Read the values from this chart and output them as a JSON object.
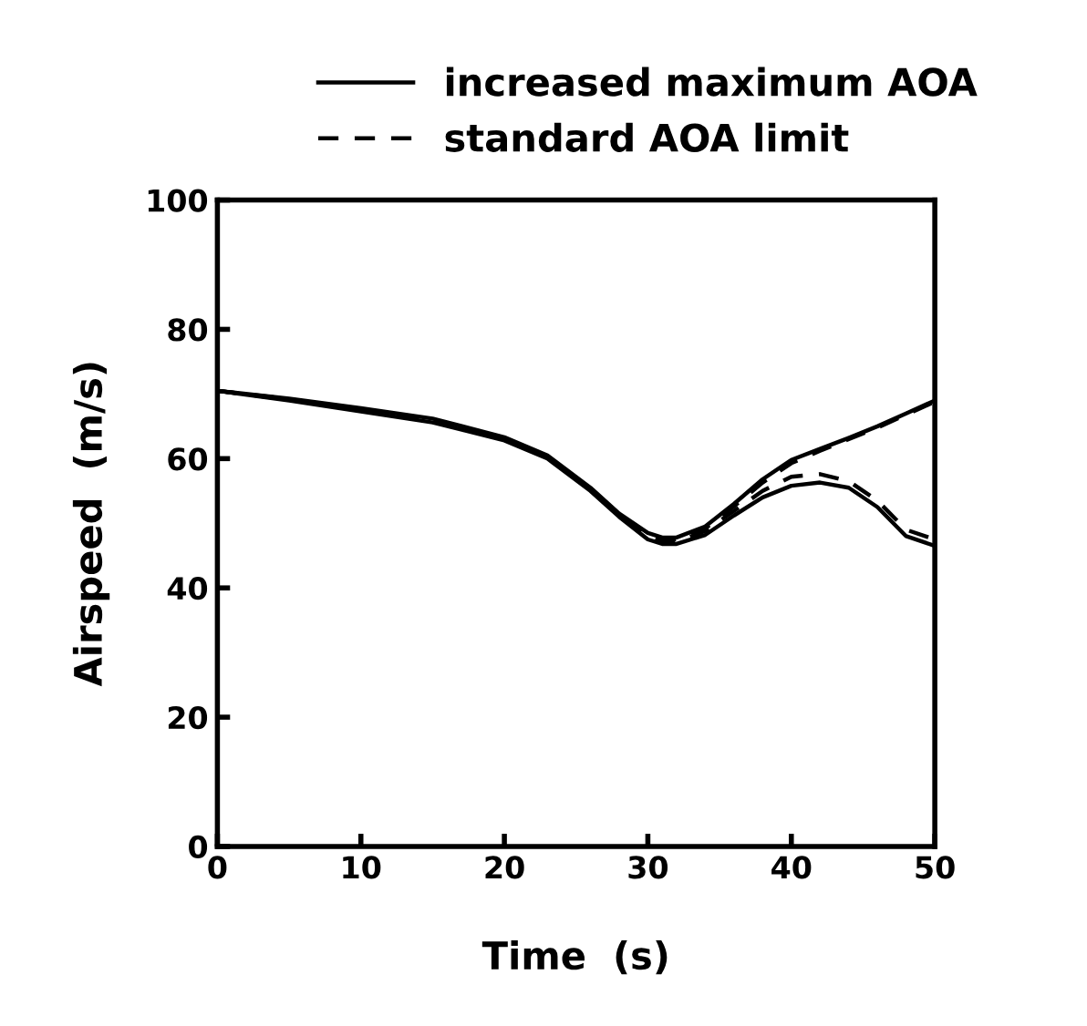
{
  "chart_data": {
    "type": "line",
    "xlabel": "Time  (s)",
    "ylabel": "Airspeed  (m/s)",
    "xlim": [
      0,
      50
    ],
    "ylim": [
      0,
      100
    ],
    "xticks": [
      0,
      10,
      20,
      30,
      40,
      50
    ],
    "yticks": [
      0,
      20,
      40,
      60,
      80,
      100
    ],
    "grid": false,
    "legend": "top",
    "marker": "none",
    "x": [
      0,
      5,
      10,
      15,
      20,
      23,
      26,
      28,
      30,
      31,
      32,
      34,
      36,
      38,
      40,
      42,
      44,
      46,
      48,
      50
    ],
    "series": [
      {
        "name": "increased maximum AOA",
        "color": "#000000",
        "line_style": "solid",
        "values": [
          70.5,
          69.3,
          67.8,
          66.2,
          63.3,
          60.5,
          55.5,
          51.5,
          48.5,
          47.8,
          47.8,
          49.5,
          53,
          56.8,
          59.8,
          61.5,
          63.2,
          65,
          67,
          69
        ]
      },
      {
        "color": "#000000",
        "line_style": "solid",
        "values": [
          70.5,
          69.0,
          67.3,
          65.6,
          62.8,
          60,
          55,
          51,
          47.5,
          46.8,
          46.8,
          48.2,
          51.2,
          54,
          55.8,
          56.3,
          55.5,
          52.5,
          48,
          46.5
        ]
      },
      {
        "name": "standard AOA limit",
        "color": "#000000",
        "line_style": "dashed",
        "values": [
          70.5,
          69.2,
          67.6,
          66,
          63.1,
          60.3,
          55.3,
          51.3,
          48.2,
          47.5,
          47.5,
          49.2,
          52.6,
          56.3,
          59.3,
          61.2,
          63,
          64.8,
          66.8,
          68.8
        ]
      },
      {
        "color": "#000000",
        "line_style": "dashed",
        "values": [
          70.5,
          69.1,
          67.5,
          65.8,
          63,
          60.2,
          55.2,
          51.2,
          47.8,
          47.1,
          47.1,
          48.8,
          51.9,
          55,
          57.2,
          57.6,
          56.5,
          53.5,
          49,
          47.5
        ]
      }
    ]
  }
}
